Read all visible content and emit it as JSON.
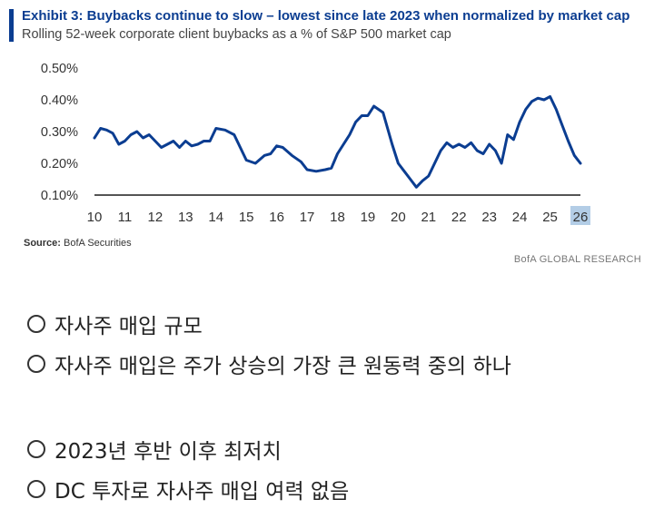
{
  "exhibit": {
    "title": "Exhibit 3: Buybacks continue to slow – lowest since late 2023 when normalized by market cap",
    "subtitle": "Rolling 52-week corporate client buybacks as a % of S&P 500 market cap",
    "source_label": "Source:",
    "source_value": "BofA Securities",
    "brand": "BofA GLOBAL RESEARCH",
    "accent_color": "#0b3d91"
  },
  "chart_data": {
    "type": "line",
    "title": "Exhibit 3: Buybacks continue to slow – lowest since late 2023 when normalized by market cap",
    "subtitle": "Rolling 52-week corporate client buybacks as a % of S&P 500 market cap",
    "xlabel": "",
    "ylabel": "",
    "x_ticks": [
      "10",
      "11",
      "12",
      "13",
      "14",
      "15",
      "16",
      "17",
      "18",
      "19",
      "20",
      "21",
      "22",
      "23",
      "24",
      "25",
      "26"
    ],
    "highlighted_tick": "26",
    "y_ticks": [
      "0.10%",
      "0.20%",
      "0.30%",
      "0.40%",
      "0.50%"
    ],
    "xlim": [
      10,
      26
    ],
    "ylim": [
      0.1,
      0.5
    ],
    "grid": false,
    "line_color": "#0b3d91",
    "series": [
      {
        "x": [
          10.0,
          10.2,
          10.4,
          10.6,
          10.8,
          11.0,
          11.2,
          11.4,
          11.6,
          11.8,
          12.0,
          12.2,
          12.4,
          12.6,
          12.8,
          13.0,
          13.2,
          13.4,
          13.6,
          13.8,
          14.0,
          14.3,
          14.6,
          14.8,
          15.0,
          15.3,
          15.6,
          15.8,
          16.0,
          16.2,
          16.5,
          16.8,
          17.0,
          17.3,
          17.6,
          17.8,
          18.0,
          18.2,
          18.4,
          18.6,
          18.8,
          19.0,
          19.2,
          19.5,
          19.8,
          20.0,
          20.2,
          20.4,
          20.6,
          20.8,
          21.0,
          21.2,
          21.4,
          21.6,
          21.8,
          22.0,
          22.2,
          22.4,
          22.6,
          22.8,
          23.0,
          23.2,
          23.4,
          23.6,
          23.8,
          24.0,
          24.2,
          24.4,
          24.6,
          24.8,
          25.0,
          25.2,
          25.4,
          25.6,
          25.8,
          26.0
        ],
        "y": [
          0.28,
          0.31,
          0.305,
          0.295,
          0.26,
          0.27,
          0.29,
          0.3,
          0.28,
          0.29,
          0.27,
          0.25,
          0.26,
          0.27,
          0.25,
          0.27,
          0.255,
          0.26,
          0.27,
          0.27,
          0.31,
          0.305,
          0.29,
          0.25,
          0.21,
          0.2,
          0.225,
          0.23,
          0.255,
          0.25,
          0.225,
          0.205,
          0.18,
          0.175,
          0.18,
          0.185,
          0.23,
          0.26,
          0.29,
          0.33,
          0.35,
          0.35,
          0.38,
          0.36,
          0.26,
          0.2,
          0.175,
          0.15,
          0.125,
          0.145,
          0.16,
          0.2,
          0.24,
          0.265,
          0.25,
          0.26,
          0.25,
          0.265,
          0.24,
          0.23,
          0.26,
          0.24,
          0.2,
          0.29,
          0.275,
          0.33,
          0.37,
          0.395,
          0.405,
          0.4,
          0.41,
          0.37,
          0.32,
          0.27,
          0.225,
          0.2
        ]
      }
    ]
  },
  "question": {
    "options": [
      "자사주 매입 규모",
      "자사주 매입은 주가 상승의 가장 큰 원동력 중의 하나",
      "2023년 후반 이후 최저치",
      "DC 투자로 자사주 매입 여력 없음"
    ]
  }
}
